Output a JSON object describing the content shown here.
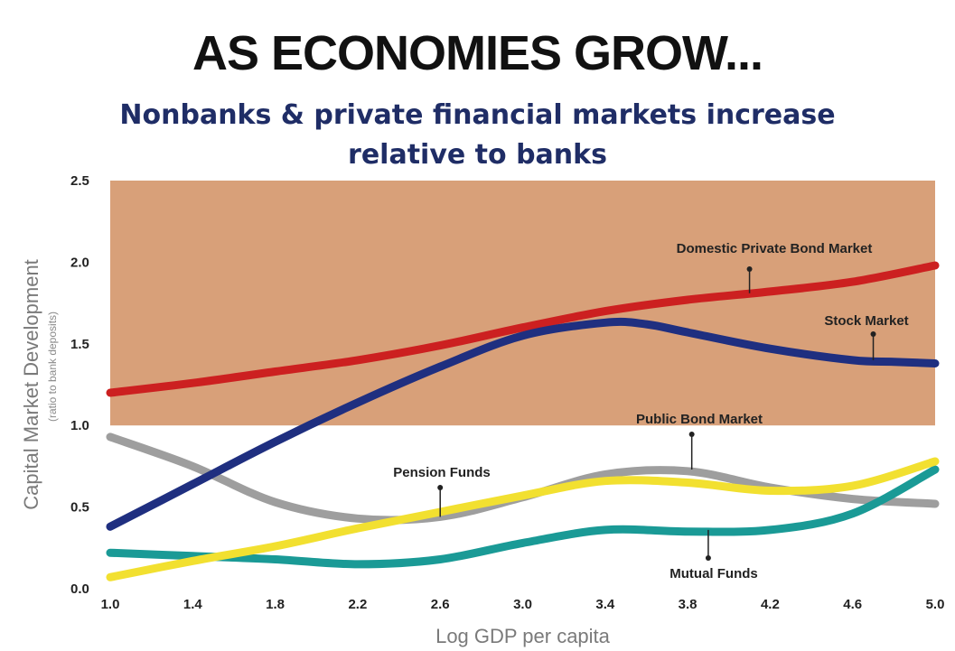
{
  "chart_data": {
    "type": "line",
    "title": "AS ECONOMIES GROW...",
    "subtitle_line1": "Nonbanks & private financial markets increase",
    "subtitle_line2": "relative to banks",
    "xlabel": "Log GDP per capita",
    "ylabel": "Capital Market Development",
    "ylabel_sub": "(ratio to bank deposits)",
    "xlim": [
      1.0,
      5.0
    ],
    "ylim": [
      0.0,
      2.5
    ],
    "x_ticks": [
      "1.0",
      "1.4",
      "1.8",
      "2.2",
      "2.6",
      "3.0",
      "3.4",
      "3.8",
      "4.2",
      "4.6",
      "5.0"
    ],
    "y_ticks": [
      "0.0",
      "0.5",
      "1.0",
      "1.5",
      "2.0",
      "2.5"
    ],
    "shaded_region": {
      "y_from": 1.0,
      "y_to": 2.5,
      "color": "#d8a079"
    },
    "grid": false,
    "series": [
      {
        "name": "Domestic Private Bond Market",
        "color": "#cc2020",
        "x": [
          1.0,
          1.4,
          1.8,
          2.2,
          2.6,
          3.0,
          3.4,
          3.8,
          4.2,
          4.6,
          5.0
        ],
        "y": [
          1.2,
          1.26,
          1.33,
          1.4,
          1.49,
          1.6,
          1.7,
          1.77,
          1.82,
          1.88,
          1.98
        ]
      },
      {
        "name": "Stock Market",
        "color": "#1f2f80",
        "x": [
          1.0,
          1.4,
          1.8,
          2.2,
          2.6,
          3.0,
          3.4,
          3.6,
          3.8,
          4.2,
          4.6,
          4.8,
          5.0
        ],
        "y": [
          0.38,
          0.64,
          0.9,
          1.14,
          1.36,
          1.55,
          1.63,
          1.62,
          1.57,
          1.47,
          1.4,
          1.39,
          1.38
        ]
      },
      {
        "name": "Pension Funds",
        "color": "#9e9e9e",
        "x": [
          1.0,
          1.4,
          1.8,
          2.2,
          2.6,
          3.0,
          3.4,
          3.8,
          4.2,
          4.6,
          5.0
        ],
        "y": [
          0.93,
          0.75,
          0.53,
          0.43,
          0.44,
          0.56,
          0.7,
          0.72,
          0.62,
          0.55,
          0.52
        ]
      },
      {
        "name": "Public Bond Market",
        "color": "#f2e030",
        "x": [
          1.0,
          1.4,
          1.8,
          2.2,
          2.6,
          3.0,
          3.4,
          3.8,
          4.2,
          4.6,
          5.0
        ],
        "y": [
          0.07,
          0.17,
          0.26,
          0.37,
          0.47,
          0.57,
          0.66,
          0.65,
          0.6,
          0.63,
          0.78
        ]
      },
      {
        "name": "Mutual Funds",
        "color": "#1a9a96",
        "x": [
          1.0,
          1.4,
          1.8,
          2.2,
          2.6,
          3.0,
          3.4,
          3.8,
          4.2,
          4.6,
          5.0
        ],
        "y": [
          0.22,
          0.2,
          0.18,
          0.15,
          0.18,
          0.28,
          0.36,
          0.35,
          0.36,
          0.46,
          0.73
        ]
      }
    ],
    "annotations": [
      {
        "text": "Domestic Private Bond Market",
        "x": 4.1,
        "y": 1.81
      },
      {
        "text": "Stock Market",
        "x": 4.7,
        "y": 1.4
      },
      {
        "text": "Public Bond Market",
        "x": 3.82,
        "y": 0.73
      },
      {
        "text": "Pension Funds",
        "x": 2.6,
        "y": 0.44
      },
      {
        "text": "Mutual Funds",
        "x": 3.9,
        "y": 0.36
      }
    ]
  }
}
